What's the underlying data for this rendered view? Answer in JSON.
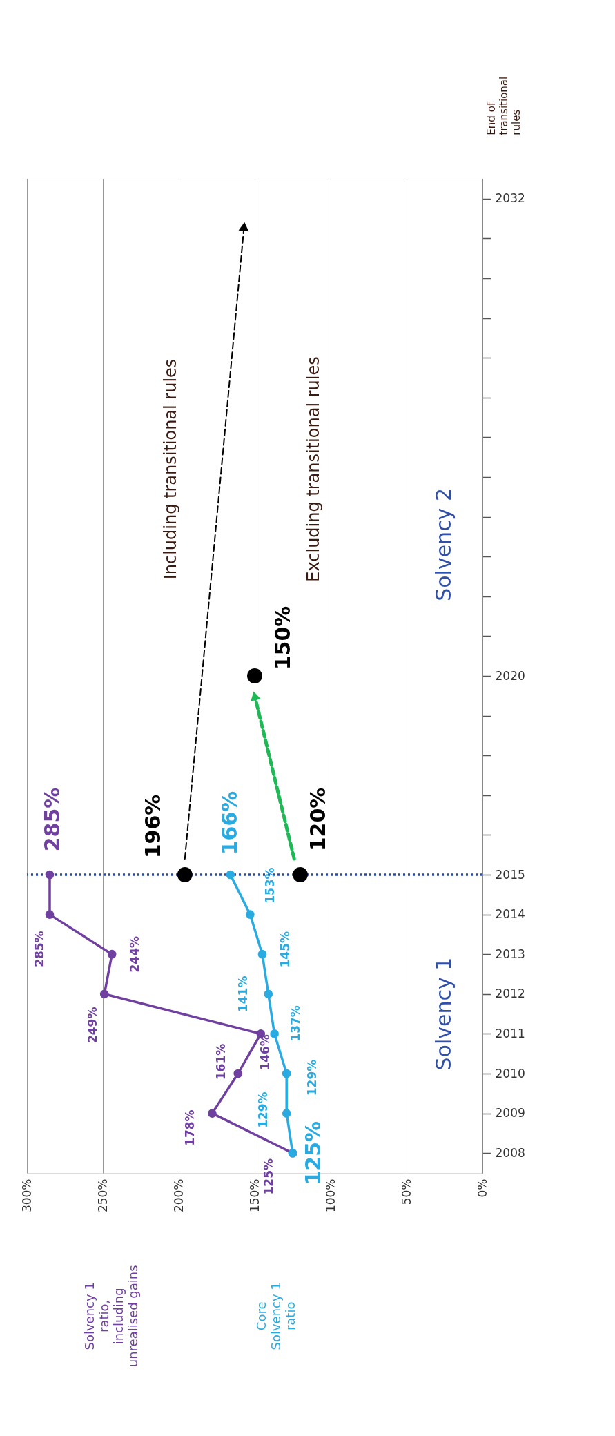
{
  "chart_data": {
    "type": "line",
    "orientation": "horizontal",
    "xlim": [
      300,
      0
    ],
    "xticks": [
      {
        "value": 300,
        "label": "300%"
      },
      {
        "value": 250,
        "label": "250%"
      },
      {
        "value": 200,
        "label": "200%"
      },
      {
        "value": 150,
        "label": "150%"
      },
      {
        "value": 100,
        "label": "100%"
      },
      {
        "value": 50,
        "label": "50%"
      },
      {
        "value": 0,
        "label": "0%"
      }
    ],
    "ylim": [
      2007.5,
      2032.5
    ],
    "yticks": [
      2008,
      2009,
      2010,
      2011,
      2012,
      2013,
      2014,
      2015,
      {
        "value": 2016,
        "label": null
      },
      {
        "value": 2017,
        "label": null
      },
      {
        "value": 2018,
        "label": null
      },
      {
        "value": 2019,
        "label": null
      },
      2020,
      {
        "value": 2021,
        "label": null
      },
      {
        "value": 2022,
        "label": null
      },
      {
        "value": 2023,
        "label": null
      },
      {
        "value": 2024,
        "label": null
      },
      {
        "value": 2025,
        "label": null
      },
      {
        "value": 2026,
        "label": null
      },
      {
        "value": 2027,
        "label": null
      },
      {
        "value": 2028,
        "label": null
      },
      {
        "value": 2029,
        "label": null
      },
      {
        "value": 2030,
        "label": null
      },
      {
        "value": 2031,
        "label": null
      },
      2032
    ],
    "grid": "x",
    "legend": "bottom left",
    "marker": "circle",
    "line_style": "solid",
    "series": [
      {
        "name": "Solvency 1 ratio, including unrealised gains",
        "color": "#7040a0",
        "x": [
          2008,
          2009,
          2010,
          2011,
          2012,
          2013,
          2014,
          2015
        ],
        "values": [
          125,
          178,
          161,
          146,
          249,
          244,
          285,
          285
        ],
        "value_labels": [
          "125%",
          "178%",
          "161%",
          "146%",
          "249%",
          "244%",
          "285%",
          "285%"
        ]
      },
      {
        "name": "Core Solvency 1 ratio",
        "color": "#29abe2",
        "x": [
          2008,
          2009,
          2010,
          2011,
          2012,
          2013,
          2014,
          2015
        ],
        "values": [
          125,
          129,
          129,
          137,
          141,
          145,
          153,
          166
        ],
        "value_labels": [
          "125%",
          "129%",
          "129%",
          "137%",
          "141%",
          "145%",
          "153%",
          "166%"
        ]
      },
      {
        "type": "scatter",
        "color": "#000000",
        "x": [
          2015,
          2015,
          2020
        ],
        "values": [
          196,
          120,
          150
        ],
        "value_labels": [
          "196%",
          "120%",
          "150%"
        ]
      },
      {
        "color": "#000000",
        "line_style": "dashed",
        "marker": "triangle",
        "x": [
          2015.4,
          2031.3
        ],
        "values": [
          196,
          157
        ]
      },
      {
        "color": "#1db954",
        "line_style": "dashed",
        "marker": "triangle",
        "x": [
          2015.4,
          2019.5
        ],
        "values": [
          124,
          150
        ]
      }
    ],
    "ref_lines": [
      {
        "axis": "y",
        "value": 2015,
        "color": "#2e4a9e",
        "line_style": "dotted"
      }
    ],
    "annotations": [
      "End of transitional rules",
      "Including transitional rules",
      "Excluding transitional rules",
      "Solvency 1",
      "Solvency 2"
    ]
  }
}
